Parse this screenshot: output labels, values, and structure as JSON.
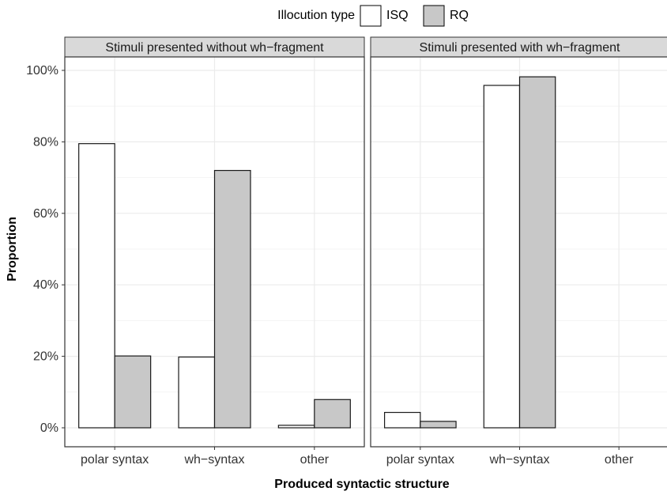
{
  "chart_data": {
    "type": "bar",
    "legend": {
      "title": "Illocution type",
      "placement": "top",
      "entries": [
        {
          "name": "ISQ",
          "color": "#ffffff"
        },
        {
          "name": "RQ",
          "color": "#c8c8c8"
        }
      ]
    },
    "xlabel": "Produced syntactic structure",
    "ylabel": "Proportion",
    "ylim": [
      0,
      1
    ],
    "yticks": [
      {
        "value": 0,
        "label": "0%"
      },
      {
        "value": 0.2,
        "label": "20%"
      },
      {
        "value": 0.4,
        "label": "40%"
      },
      {
        "value": 0.6,
        "label": "60%"
      },
      {
        "value": 0.8,
        "label": "80%"
      },
      {
        "value": 1.0,
        "label": "100%"
      }
    ],
    "grid": true,
    "categories": [
      "polar syntax",
      "wh−syntax",
      "other"
    ],
    "panels": [
      {
        "title": "Stimuli presented without wh−fragment",
        "series": [
          {
            "name": "ISQ",
            "values": [
              0.795,
              0.198,
              0.007
            ]
          },
          {
            "name": "RQ",
            "values": [
              0.201,
              0.72,
              0.079
            ]
          }
        ]
      },
      {
        "title": "Stimuli presented with wh−fragment",
        "series": [
          {
            "name": "ISQ",
            "values": [
              0.043,
              0.958,
              0.0
            ]
          },
          {
            "name": "RQ",
            "values": [
              0.018,
              0.982,
              0.0
            ]
          }
        ]
      }
    ]
  }
}
